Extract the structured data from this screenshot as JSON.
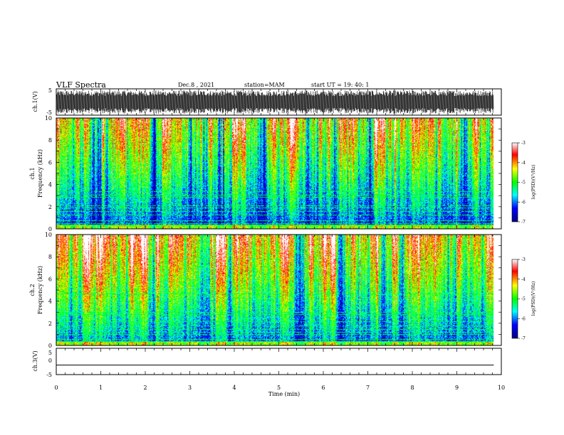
{
  "header": {
    "title": "VLF Spectra",
    "date": "Dec.8 , 2021",
    "station": "station=MAM",
    "start": "start UT =  19: 40: 1"
  },
  "chart_data": [
    {
      "type": "line",
      "name": "ch1-waveform",
      "ylabel": "ch.1(V)",
      "ylim": [
        -5,
        5
      ],
      "y_ticks": [
        "5",
        "-5"
      ],
      "xlim": [
        0,
        10
      ],
      "trace": "dense oscillating signal, peaks near ±4 V"
    },
    {
      "type": "heatmap",
      "name": "ch1-spectrogram",
      "ylabel": "ch.1\nFrequency (kHz)",
      "ylabel_lines": [
        "ch.1",
        "Frequency (kHz)"
      ],
      "ylim": [
        0,
        10
      ],
      "y_ticks": [
        "0",
        "2",
        "4",
        "6",
        "8",
        "10"
      ],
      "xlim": [
        0,
        9.85
      ],
      "colorbar": {
        "label": "log(PSD)(V²/Hz)",
        "range": [
          -7,
          -3
        ],
        "ticks": [
          "-3",
          "-4",
          "-5",
          "-6",
          "-7"
        ],
        "colors": [
          "#000080",
          "#0000ff",
          "#00ffff",
          "#00ff00",
          "#ffff00",
          "#ff0000",
          "#ffffff"
        ]
      }
    },
    {
      "type": "heatmap",
      "name": "ch2-spectrogram",
      "ylabel": "ch.2\nFrequency (kHz)",
      "ylabel_lines": [
        "ch.2",
        "Frequency (kHz)"
      ],
      "ylim": [
        0,
        10
      ],
      "y_ticks": [
        "0",
        "2",
        "4",
        "6",
        "8",
        "10"
      ],
      "xlim": [
        0,
        9.85
      ],
      "colorbar": {
        "label": "log(PSD)(V²/Hz)",
        "range": [
          -7,
          -3
        ],
        "ticks": [
          "-3",
          "-4",
          "-5",
          "-6",
          "-7"
        ],
        "colors": [
          "#000080",
          "#0000ff",
          "#00ffff",
          "#00ff00",
          "#ffff00",
          "#ff0000",
          "#ffffff"
        ]
      }
    },
    {
      "type": "line",
      "name": "ch3-waveform",
      "ylabel": "ch.3(V)",
      "ylim": [
        -5,
        5
      ],
      "y_ticks": [
        "5",
        "0",
        "-5"
      ],
      "xlim": [
        0,
        10
      ],
      "constant_value": -1.5,
      "xlabel": "Time (min)",
      "x_ticks": [
        "0",
        "1",
        "2",
        "3",
        "4",
        "5",
        "6",
        "7",
        "8",
        "9",
        "10"
      ]
    }
  ]
}
